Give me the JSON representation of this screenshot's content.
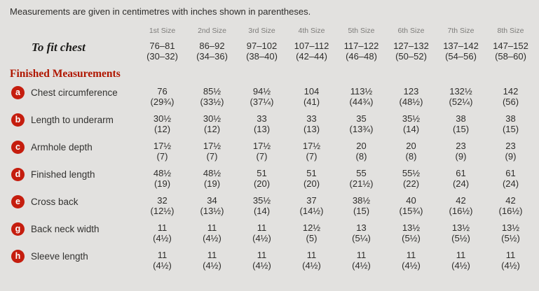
{
  "note": "Measurements are given in centimetres with inches shown in parentheses.",
  "section_heading": "Finished Measurements",
  "size_headers": [
    "1st Size",
    "2nd Size",
    "3rd Size",
    "4th Size",
    "5th Size",
    "6th Size",
    "7th Size",
    "8th Size"
  ],
  "to_fit_chest": {
    "label": "To fit chest",
    "cm": [
      "76–81",
      "86–92",
      "97–102",
      "107–112",
      "117–122",
      "127–132",
      "137–142",
      "147–152"
    ],
    "in": [
      "(30–32)",
      "(34–36)",
      "(38–40)",
      "(42–44)",
      "(46–48)",
      "(50–52)",
      "(54–56)",
      "(58–60)"
    ]
  },
  "rows": [
    {
      "badge": "a",
      "label": "Chest circumference",
      "cm": [
        "76",
        "85½",
        "94½",
        "104",
        "113½",
        "123",
        "132½",
        "142"
      ],
      "in": [
        "(29¾)",
        "(33½)",
        "(37¼)",
        "(41)",
        "(44¾)",
        "(48½)",
        "(52¼)",
        "(56)"
      ]
    },
    {
      "badge": "b",
      "label": "Length to underarm",
      "cm": [
        "30½",
        "30½",
        "33",
        "33",
        "35",
        "35½",
        "38",
        "38"
      ],
      "in": [
        "(12)",
        "(12)",
        "(13)",
        "(13)",
        "(13¾)",
        "(14)",
        "(15)",
        "(15)"
      ]
    },
    {
      "badge": "c",
      "label": "Armhole depth",
      "cm": [
        "17½",
        "17½",
        "17½",
        "17½",
        "20",
        "20",
        "23",
        "23"
      ],
      "in": [
        "(7)",
        "(7)",
        "(7)",
        "(7)",
        "(8)",
        "(8)",
        "(9)",
        "(9)"
      ]
    },
    {
      "badge": "d",
      "label": "Finished length",
      "cm": [
        "48½",
        "48½",
        "51",
        "51",
        "55",
        "55½",
        "61",
        "61"
      ],
      "in": [
        "(19)",
        "(19)",
        "(20)",
        "(20)",
        "(21½)",
        "(22)",
        "(24)",
        "(24)"
      ]
    },
    {
      "badge": "e",
      "label": "Cross back",
      "cm": [
        "32",
        "34",
        "35½",
        "37",
        "38½",
        "40",
        "42",
        "42"
      ],
      "in": [
        "(12½)",
        "(13½)",
        "(14)",
        "(14½)",
        "(15)",
        "(15¾)",
        "(16½)",
        "(16½)"
      ]
    },
    {
      "badge": "g",
      "label": "Back neck width",
      "cm": [
        "11",
        "11",
        "11",
        "12½",
        "13",
        "13½",
        "13½",
        "13½"
      ],
      "in": [
        "(4½)",
        "(4½)",
        "(4½)",
        "(5)",
        "(5¼)",
        "(5½)",
        "(5½)",
        "(5½)"
      ]
    },
    {
      "badge": "h",
      "label": "Sleeve length",
      "cm": [
        "11",
        "11",
        "11",
        "11",
        "11",
        "11",
        "11",
        "11"
      ],
      "in": [
        "(4½)",
        "(4½)",
        "(4½)",
        "(4½)",
        "(4½)",
        "(4½)",
        "(4½)",
        "(4½)"
      ]
    }
  ],
  "badge_color": "#c51d0e",
  "heading_color": "#b01600",
  "background_color": "#e2e1df"
}
